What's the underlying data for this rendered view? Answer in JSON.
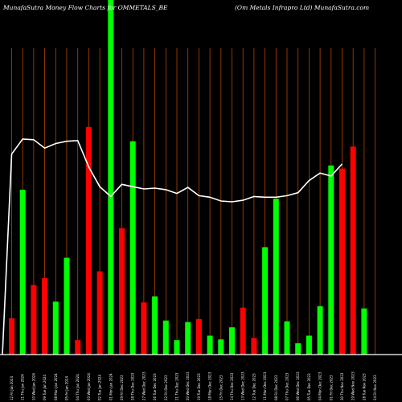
{
  "header": {
    "left_text": "MunafaSutra  Money Flow  Charts for OMMETALS_BE",
    "right_text": "(Om Metals Infrapro  Ltd) MunafaSutra.com"
  },
  "colors": {
    "background": "#000000",
    "grid": "#b34700",
    "up": "#00ff00",
    "down": "#ff0000",
    "line": "#ffffff",
    "text": "#ffffff"
  },
  "chart_data": {
    "type": "bar",
    "title": "MunafaSutra  Money Flow  Charts for OMMETALS_BE",
    "subtitle": "(Om Metals Infrapro  Ltd) MunafaSutra.com",
    "categories": [
      "12 Fri Jan 2024",
      "11 Thu Jan 2024",
      "10 Wed Jan 2024",
      "09 Tue Jan 2024",
      "08 Mon Jan 2024",
      "05 Fri Jan 2024",
      "04 Thu Jan 2024",
      "03 Wed Jan 2024",
      "02 Tue Jan 2024",
      "01 Mon Jan 2024",
      "29 Fri Dec 2023",
      "28 Thu Dec 2023",
      "27 Wed Dec 2023",
      "26 Tue Dec 2023",
      "22 Fri Dec 2023",
      "21 Thu Dec 2023",
      "20 Wed Dec 2023",
      "19 Tue Dec 2023",
      "18 Mon Dec 2023",
      "15 Fri Dec 2023",
      "14 Thu Dec 2023",
      "13 Wed Dec 2023",
      "12 Tue Dec 2023",
      "11 Mon Dec 2023",
      "08 Fri Dec 2023",
      "07 Thu Dec 2023",
      "06 Wed Dec 2023",
      "05 Tue Dec 2023",
      "04 Mon Dec 2023",
      "01 Fri Dec 2023",
      "30 Thu Nov 2023",
      "29 Wed Nov 2023",
      "28 Tue Nov 2023",
      "24 Fri Nov 2023"
    ],
    "bar_values": [
      48,
      218,
      92,
      101,
      70,
      128,
      19,
      301,
      110,
      500,
      167,
      282,
      69,
      77,
      45,
      19,
      43,
      47,
      25,
      20,
      36,
      62,
      22,
      142,
      206,
      44,
      15,
      25,
      64,
      250,
      246,
      275,
      61,
      0
    ],
    "bar_directions": [
      "down",
      "up",
      "down",
      "down",
      "up",
      "up",
      "down",
      "down",
      "down",
      "up",
      "down",
      "up",
      "down",
      "up",
      "up",
      "up",
      "up",
      "down",
      "up",
      "up",
      "up",
      "down",
      "down",
      "up",
      "up",
      "up",
      "up",
      "up",
      "up",
      "up",
      "down",
      "down",
      "up",
      "none"
    ],
    "line_values": [
      265,
      285,
      284,
      273,
      279,
      282,
      283,
      248,
      222,
      209,
      225,
      222,
      219,
      220,
      218,
      213,
      221,
      210,
      208,
      203,
      202,
      204,
      209,
      208,
      208,
      210,
      214,
      230,
      240,
      236,
      252,
      0,
      0,
      0
    ],
    "ylim": [
      0,
      300
    ],
    "grid": true,
    "xlabel": "",
    "ylabel": ""
  }
}
